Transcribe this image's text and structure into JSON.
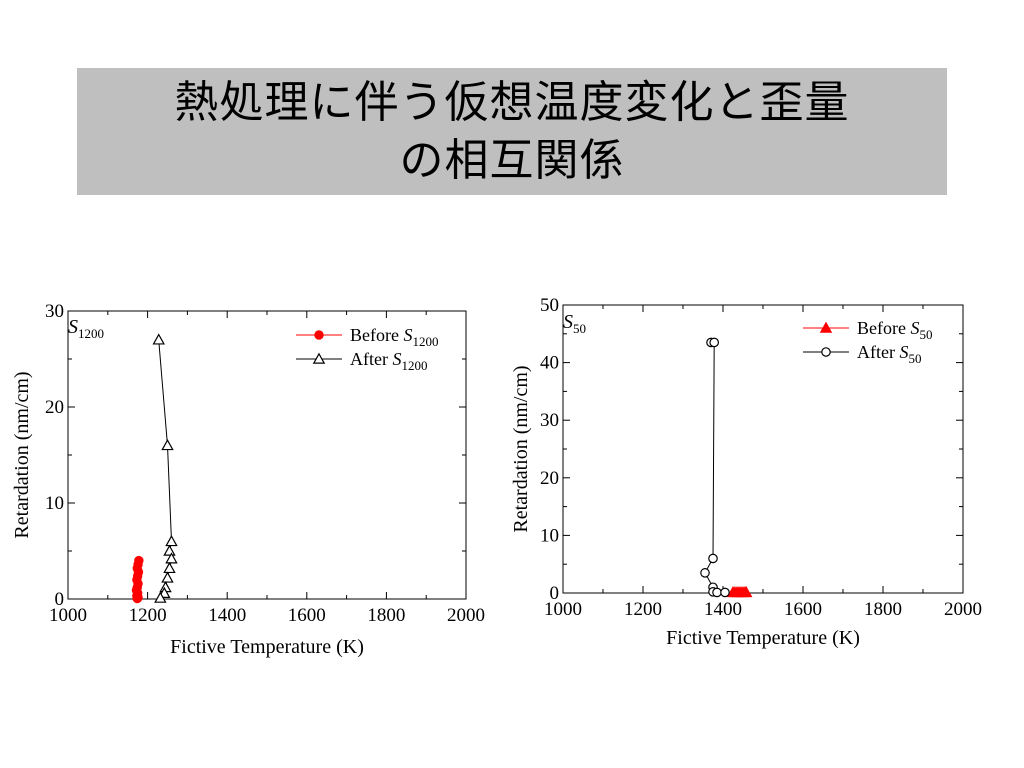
{
  "slide": {
    "title_line1": "熱処理に伴う仮想温度変化と歪量",
    "title_line2": "の相互関係"
  },
  "chart_data": [
    {
      "id": "left",
      "type": "line",
      "corner_label": {
        "main": "S",
        "sub": "1200"
      },
      "xlabel": "Fictive Temperature (K)",
      "ylabel": "Retardation (nm/cm)",
      "xlim": [
        1000,
        2000
      ],
      "ylim": [
        0,
        30
      ],
      "xticks": [
        1000,
        1200,
        1400,
        1600,
        1800,
        2000
      ],
      "yticks": [
        0,
        10,
        20,
        30
      ],
      "legend_position": "top-right",
      "series": [
        {
          "legend_main": "Before ",
          "legend_italic": "S",
          "legend_sub": "1200",
          "color": "#ff0000",
          "marker": "filled-circle",
          "line": false,
          "points": [
            [
              1178,
              4.0
            ],
            [
              1176,
              3.6
            ],
            [
              1174,
              3.2
            ],
            [
              1177,
              2.8
            ],
            [
              1175,
              2.4
            ],
            [
              1173,
              2.0
            ],
            [
              1176,
              1.6
            ],
            [
              1174,
              1.2
            ],
            [
              1172,
              0.9
            ],
            [
              1175,
              0.6
            ],
            [
              1173,
              0.3
            ],
            [
              1176,
              0.15
            ],
            [
              1174,
              0.05
            ]
          ]
        },
        {
          "legend_main": "After ",
          "legend_italic": "S",
          "legend_sub": "1200",
          "color": "#000000",
          "marker": "open-triangle",
          "line": true,
          "points": [
            [
              1228,
              27.0
            ],
            [
              1250,
              16.0
            ],
            [
              1260,
              6.0
            ],
            [
              1255,
              5.0
            ],
            [
              1260,
              4.2
            ],
            [
              1255,
              3.2
            ],
            [
              1250,
              2.2
            ],
            [
              1245,
              1.2
            ],
            [
              1242,
              0.6
            ],
            [
              1232,
              0.1
            ]
          ]
        }
      ]
    },
    {
      "id": "right",
      "type": "line",
      "corner_label": {
        "main": "S",
        "sub": "50"
      },
      "xlabel": "Fictive Temperature (K)",
      "ylabel": "Retardation (nm/cm)",
      "xlim": [
        1000,
        2000
      ],
      "ylim": [
        0,
        50
      ],
      "xticks": [
        1000,
        1200,
        1400,
        1600,
        1800,
        2000
      ],
      "yticks": [
        0,
        10,
        20,
        30,
        40,
        50
      ],
      "legend_position": "top-right",
      "series": [
        {
          "legend_main": "Before ",
          "legend_italic": "S",
          "legend_sub": "50",
          "color": "#ff0000",
          "marker": "filled-triangle",
          "line": false,
          "points": [
            [
              1425,
              0.1
            ],
            [
              1430,
              0.1
            ],
            [
              1435,
              0.1
            ],
            [
              1440,
              0.1
            ],
            [
              1445,
              0.1
            ],
            [
              1450,
              0.1
            ],
            [
              1455,
              0.1
            ],
            [
              1458,
              0.1
            ]
          ]
        },
        {
          "legend_main": "After ",
          "legend_italic": "S",
          "legend_sub": "50",
          "color": "#000000",
          "marker": "open-circle",
          "line": true,
          "points": [
            [
              1370,
              43.5
            ],
            [
              1378,
              43.5
            ],
            [
              1375,
              6.0
            ],
            [
              1355,
              3.5
            ],
            [
              1375,
              1.0
            ],
            [
              1375,
              0.2
            ],
            [
              1385,
              0.1
            ],
            [
              1405,
              0.1
            ]
          ]
        }
      ]
    }
  ]
}
